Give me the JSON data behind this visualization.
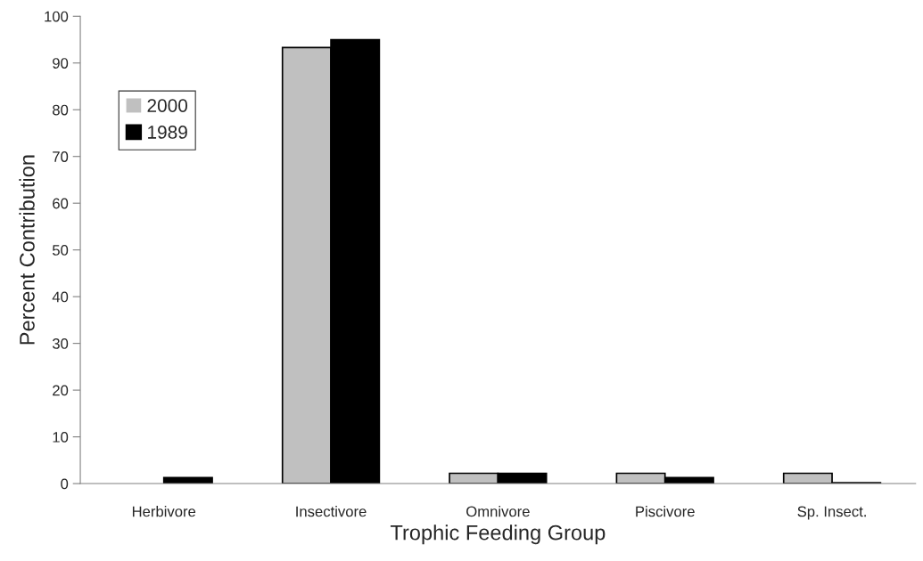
{
  "chart_data": {
    "type": "bar",
    "xlabel": "Trophic Feeding Group",
    "ylabel": "Percent Contribution",
    "categories": [
      "Herbivore",
      "Insectivore",
      "Omnivore",
      "Piscivore",
      "Sp. Insect."
    ],
    "series": [
      {
        "name": "2000",
        "color": "#c0c0c0",
        "values": [
          0,
          93.3,
          2.2,
          2.2,
          2.2
        ]
      },
      {
        "name": "1989",
        "color": "#000000",
        "values": [
          1.3,
          95,
          2.2,
          1.3,
          0.2
        ]
      }
    ],
    "ylim": [
      0,
      100
    ],
    "yticks": [
      0,
      10,
      20,
      30,
      40,
      50,
      60,
      70,
      80,
      90,
      100
    ],
    "grid": false,
    "legend": "top left"
  }
}
